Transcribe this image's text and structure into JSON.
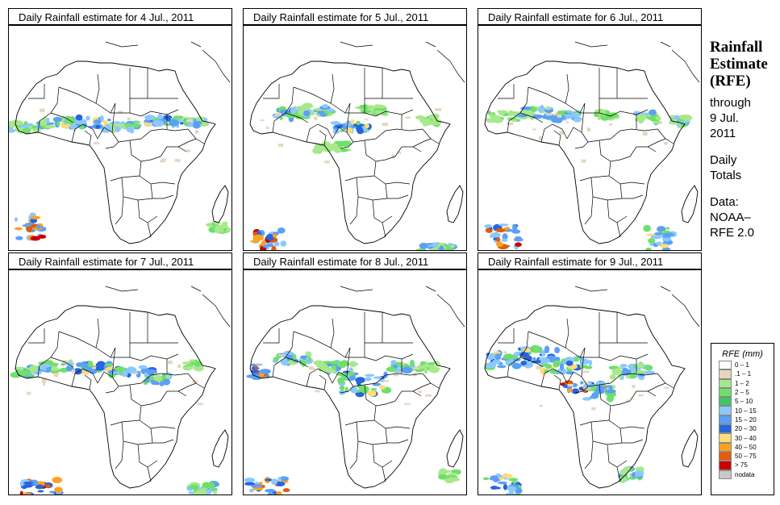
{
  "panels": [
    {
      "title": "Daily Rainfall estimate for  4 Jul., 2011"
    },
    {
      "title": "Daily Rainfall estimate for  5 Jul., 2011"
    },
    {
      "title": "Daily Rainfall estimate for  6 Jul., 2011"
    },
    {
      "title": "Daily Rainfall estimate for  7 Jul., 2011"
    },
    {
      "title": "Daily Rainfall estimate for  8 Jul., 2011"
    },
    {
      "title": "Daily Rainfall estimate for  9 Jul., 2011"
    }
  ],
  "side": {
    "title_line1": "Rainfall",
    "title_line2": "Estimate",
    "title_line3": "(RFE)",
    "through": "through",
    "date_line1": "9 Jul.",
    "date_line2": "2011",
    "daily1": "Daily",
    "daily2": "Totals",
    "data_label": "Data:",
    "source1": "NOAA–",
    "source2": "RFE 2.0"
  },
  "legend": {
    "title": "RFE (mm)",
    "items": [
      {
        "label": "0 – 1",
        "color": "#ffffff"
      },
      {
        "label": ".1 – 1",
        "color": "#e6d6bd"
      },
      {
        "label": "1 – 2",
        "color": "#a8e88c"
      },
      {
        "label": "2 – 5",
        "color": "#6ee06a"
      },
      {
        "label": "5 – 10",
        "color": "#3cc864"
      },
      {
        "label": "10 – 15",
        "color": "#8cc8ff"
      },
      {
        "label": "15 – 20",
        "color": "#5aa0f5"
      },
      {
        "label": "20 – 30",
        "color": "#2864dc"
      },
      {
        "label": "30 – 40",
        "color": "#ffdc78"
      },
      {
        "label": "40 – 50",
        "color": "#ffa01e"
      },
      {
        "label": "50 – 75",
        "color": "#e65a00"
      },
      {
        "label": "> 75",
        "color": "#c80000"
      },
      {
        "label": "nodata",
        "color": "#c8c8c8"
      }
    ]
  }
}
